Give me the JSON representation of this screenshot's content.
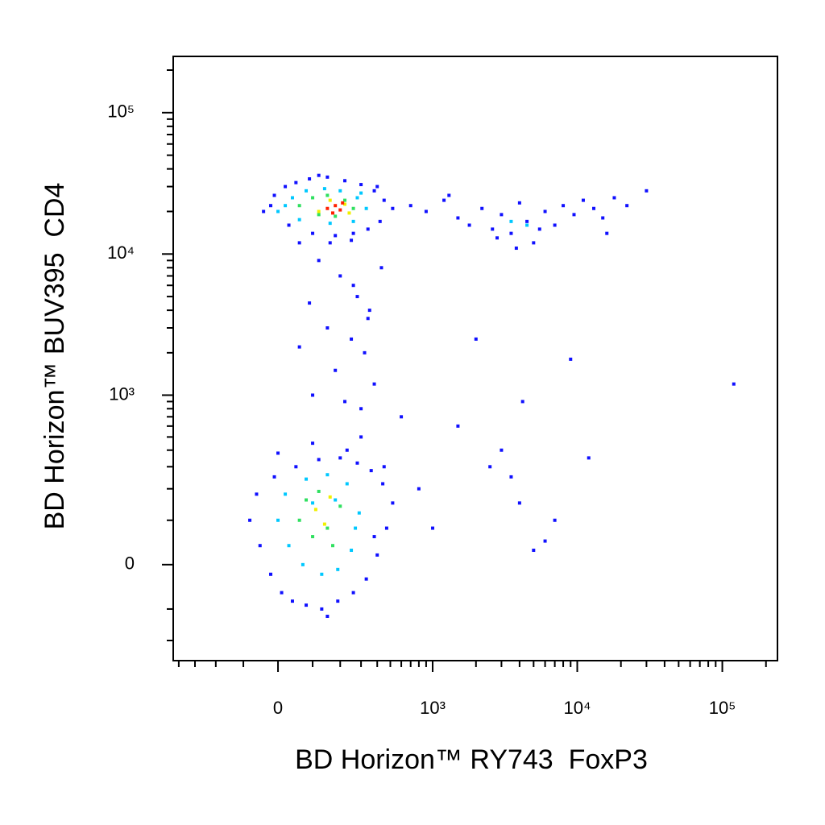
{
  "chart_data": {
    "type": "scatter",
    "xlabel": "BD Horizon™ RY743  FoxP3",
    "ylabel": "BD Horizon™ BUV395  CD4",
    "xscale": "asinh",
    "yscale": "asinh",
    "xlim": [
      -440,
      240000
    ],
    "ylim": [
      -290,
      250000
    ],
    "xticks": [
      0,
      {
        "value": 1000,
        "label": "10³"
      },
      {
        "value": 10000,
        "label": "10⁴"
      },
      {
        "value": 100000,
        "label": "10⁵"
      }
    ],
    "yticks": [
      0,
      {
        "value": 1000,
        "label": "10³"
      },
      {
        "value": 10000,
        "label": "10⁴"
      },
      {
        "value": 100000,
        "label": "10⁵"
      }
    ],
    "xminorticks": [
      -400,
      -300,
      -200,
      -100,
      100,
      200,
      300,
      400,
      500,
      600,
      700,
      800,
      900,
      2000,
      3000,
      4000,
      5000,
      6000,
      7000,
      8000,
      9000,
      20000,
      30000,
      40000,
      50000,
      60000,
      70000,
      80000,
      90000,
      200000
    ],
    "yminorticks": [
      -200,
      -100,
      100,
      200,
      300,
      400,
      500,
      600,
      700,
      800,
      900,
      2000,
      3000,
      4000,
      5000,
      6000,
      7000,
      8000,
      9000,
      20000,
      30000,
      40000,
      50000,
      60000,
      70000,
      80000,
      90000,
      200000
    ],
    "series": [
      {
        "color": "#1010ff",
        "x": [
          -40,
          -10,
          20,
          50,
          90,
          150,
          220,
          300,
          380,
          450,
          520,
          420,
          340,
          260,
          180,
          100,
          30,
          -20,
          60,
          120,
          250,
          400,
          700,
          900,
          1200,
          1500,
          1800,
          2200,
          2600,
          3000,
          3500,
          4000,
          4500,
          5000,
          6000,
          7000,
          8000,
          9500,
          11000,
          13000,
          15000,
          18000,
          22000,
          2800,
          3800,
          5500,
          1300,
          16000,
          30000,
          120,
          200,
          280,
          350,
          150,
          250,
          320,
          180,
          380,
          220,
          300,
          100,
          260,
          340,
          160,
          430,
          90,
          60,
          -80,
          -50,
          -20,
          10,
          40,
          80,
          130,
          190,
          260,
          330,
          400,
          470,
          520,
          440,
          360,
          280,
          200,
          120,
          50,
          -10,
          -60,
          100,
          300,
          150,
          230,
          0,
          380,
          450,
          2000,
          3000,
          1500,
          9000,
          4000,
          6000,
          120000,
          2500,
          7000,
          12000,
          600,
          800,
          1000,
          3500,
          5000,
          4200
        ],
        "values": [
          20000,
          26000,
          30000,
          32000,
          34000,
          35000,
          33000,
          31000,
          28000,
          24000,
          21000,
          17000,
          15000,
          14000,
          13500,
          14000,
          16000,
          22000,
          12000,
          36000,
          12500,
          30000,
          22000,
          20000,
          24000,
          18000,
          16000,
          21000,
          15000,
          19000,
          14000,
          23000,
          17000,
          12000,
          20000,
          16000,
          22000,
          19000,
          24000,
          21000,
          18000,
          25000,
          22000,
          13000,
          11000,
          15000,
          26000,
          14000,
          28000,
          9000,
          7000,
          5000,
          4000,
          3000,
          2500,
          2000,
          1500,
          1200,
          900,
          800,
          1000,
          6000,
          3500,
          12000,
          8000,
          4500,
          2200,
          100,
          40,
          -20,
          -60,
          -80,
          -90,
          -100,
          -80,
          -60,
          -30,
          20,
          80,
          150,
          220,
          280,
          320,
          350,
          340,
          300,
          250,
          180,
          450,
          500,
          -120,
          400,
          380,
          60,
          300,
          2500,
          400,
          600,
          1800,
          150,
          50,
          1200,
          300,
          100,
          350,
          700,
          200,
          80,
          250,
          30,
          900
        ]
      },
      {
        "color": "#00c8ff",
        "x": [
          0,
          40,
          80,
          140,
          200,
          280,
          330,
          260,
          160,
          60,
          20,
          300,
          0,
          30,
          70,
          130,
          190,
          250,
          290,
          230,
          150,
          80,
          20,
          180,
          100,
          270,
          3500,
          4500
        ],
        "values": [
          20000,
          25000,
          28000,
          29000,
          28000,
          25000,
          21000,
          17000,
          16500,
          17500,
          22000,
          27000,
          100,
          40,
          0,
          -20,
          -10,
          30,
          120,
          220,
          260,
          240,
          180,
          160,
          150,
          80,
          17000,
          16000
        ]
      },
      {
        "color": "#30e060",
        "x": [
          60,
          100,
          150,
          220,
          260,
          120,
          180,
          60,
          100,
          150,
          200,
          120,
          80,
          170
        ],
        "values": [
          22000,
          25000,
          26000,
          24000,
          21000,
          19000,
          18500,
          100,
          60,
          80,
          140,
          190,
          160,
          40
        ]
      },
      {
        "color": "#f0f000",
        "x": [
          120,
          160,
          220,
          240,
          110,
          140,
          160
        ],
        "values": [
          20000,
          24000,
          22500,
          19500,
          130,
          90,
          170
        ]
      },
      {
        "color": "#ff2000",
        "x": [
          150,
          180,
          200,
          170,
          210
        ],
        "values": [
          21000,
          22000,
          20500,
          19500,
          23000
        ]
      }
    ]
  }
}
